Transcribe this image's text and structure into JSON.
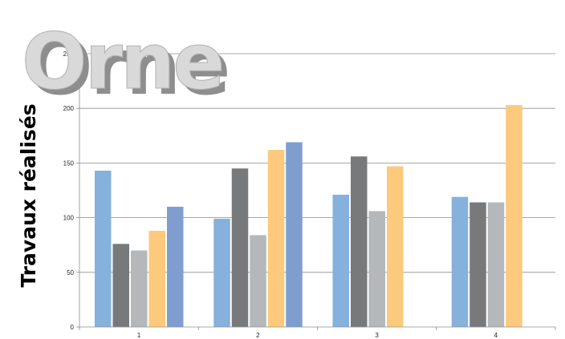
{
  "chart_data": {
    "type": "bar",
    "title": "Orne",
    "ylabel": "Travaux réalisés",
    "xlabel": "",
    "categories": [
      "1",
      "2",
      "3",
      "4"
    ],
    "ylim": [
      0,
      250
    ],
    "yticks": [
      0,
      50,
      100,
      150,
      200,
      250
    ],
    "grid": true,
    "legend": "none",
    "series": [
      {
        "color": "#85b1dc",
        "values": [
          143,
          99,
          121,
          119
        ]
      },
      {
        "color": "#77797b",
        "values": [
          76,
          145,
          156,
          114
        ]
      },
      {
        "color": "#b5b8ba",
        "values": [
          70,
          84,
          106,
          114
        ]
      },
      {
        "color": "#fdc97c",
        "values": [
          88,
          162,
          147,
          203
        ]
      },
      {
        "color": "#809dcf",
        "values": [
          110,
          169,
          null,
          null
        ]
      }
    ]
  }
}
